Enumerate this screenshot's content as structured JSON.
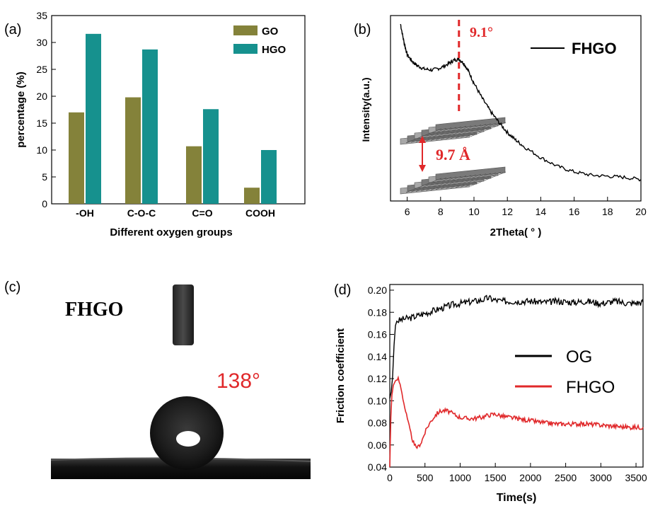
{
  "chart_data": [
    {
      "panel": "(a)",
      "type": "bar",
      "categories": [
        "-OH",
        "C-O-C",
        "C=O",
        "COOH"
      ],
      "series": [
        {
          "name": "GO",
          "values": [
            17.0,
            19.8,
            10.7,
            3.0
          ]
        },
        {
          "name": "HGO",
          "values": [
            31.6,
            28.7,
            17.6,
            10.0
          ]
        }
      ],
      "xlabel": "Different oxygen groups",
      "ylabel": "percentage (%)",
      "ylim": [
        0,
        35
      ],
      "yticks": [
        0,
        5,
        10,
        15,
        20,
        25,
        30,
        35
      ],
      "legend": "top-right",
      "colors": {
        "GO": "#84823a",
        "HGO": "#16918e"
      }
    },
    {
      "panel": "(b)",
      "type": "line",
      "series": [
        {
          "name": "FHGO",
          "x": [
            5.6,
            5.8,
            6.0,
            6.3,
            6.6,
            7.0,
            7.5,
            8.0,
            8.5,
            8.8,
            9.1,
            9.4,
            9.7,
            10.0,
            10.5,
            11.0,
            11.5,
            12.0,
            12.5,
            13.0,
            14.0,
            15.0,
            16.0,
            17.0,
            18.0,
            19.0,
            20.0
          ],
          "y": [
            100,
            92,
            86,
            83,
            81,
            79.5,
            79,
            80,
            82,
            83.5,
            84,
            82,
            78,
            73,
            66,
            60,
            55,
            50.5,
            47,
            44,
            39,
            35,
            32.5,
            31,
            30.5,
            30,
            29
          ]
        }
      ],
      "annotations": [
        "9.1°",
        "9.7 Å"
      ],
      "xlabel": "2Theta( ° )",
      "ylabel": "Intensity(a.u.)",
      "xlim": [
        5,
        20
      ],
      "xticks": [
        6,
        8,
        10,
        12,
        14,
        16,
        18,
        20
      ],
      "peak_x": 9.1,
      "legend": "top-right",
      "color": "#000000",
      "marker_color": "#e0282a"
    },
    {
      "panel": "(d)",
      "type": "line",
      "series": [
        {
          "name": "OG",
          "x": [
            0,
            20,
            40,
            60,
            80,
            100,
            150,
            200,
            300,
            400,
            500,
            600,
            700,
            800,
            900,
            1000,
            1100,
            1200,
            1300,
            1400,
            1500,
            1600,
            1800,
            2000,
            2200,
            2400,
            2600,
            2800,
            3000,
            3200,
            3400,
            3600
          ],
          "y": [
            0.102,
            0.108,
            0.122,
            0.15,
            0.168,
            0.172,
            0.173,
            0.174,
            0.175,
            0.177,
            0.179,
            0.181,
            0.183,
            0.185,
            0.187,
            0.188,
            0.189,
            0.19,
            0.191,
            0.193,
            0.191,
            0.19,
            0.19,
            0.19,
            0.189,
            0.19,
            0.189,
            0.19,
            0.188,
            0.19,
            0.188,
            0.189
          ]
        },
        {
          "name": "FHGO",
          "x": [
            0,
            15,
            30,
            50,
            80,
            120,
            160,
            200,
            250,
            300,
            350,
            400,
            450,
            500,
            550,
            600,
            650,
            700,
            750,
            800,
            850,
            900,
            1000,
            1100,
            1200,
            1300,
            1400,
            1500,
            1600,
            1800,
            2000,
            2200,
            2400,
            2600,
            2800,
            3000,
            3200,
            3400,
            3600
          ],
          "y": [
            0.04,
            0.085,
            0.105,
            0.114,
            0.118,
            0.12,
            0.112,
            0.098,
            0.083,
            0.07,
            0.059,
            0.058,
            0.063,
            0.071,
            0.078,
            0.083,
            0.087,
            0.09,
            0.091,
            0.091,
            0.09,
            0.088,
            0.085,
            0.084,
            0.084,
            0.085,
            0.087,
            0.088,
            0.086,
            0.084,
            0.082,
            0.08,
            0.079,
            0.079,
            0.079,
            0.078,
            0.077,
            0.076,
            0.076
          ]
        }
      ],
      "xlabel": "Time(s)",
      "ylabel": "Friction coefficient",
      "xlim": [
        0,
        3600
      ],
      "ylim": [
        0.04,
        0.2
      ],
      "xticks": [
        0,
        500,
        1000,
        1500,
        2000,
        2500,
        3000,
        3500
      ],
      "yticks": [
        0.04,
        0.06,
        0.08,
        0.1,
        0.12,
        0.14,
        0.16,
        0.18,
        0.2
      ],
      "legend": "center-right",
      "colors": {
        "OG": "#000000",
        "FHGO": "#e0282a"
      }
    }
  ],
  "panel_c": {
    "label": "(c)",
    "sample": "FHGO",
    "angle_text": "138°"
  }
}
